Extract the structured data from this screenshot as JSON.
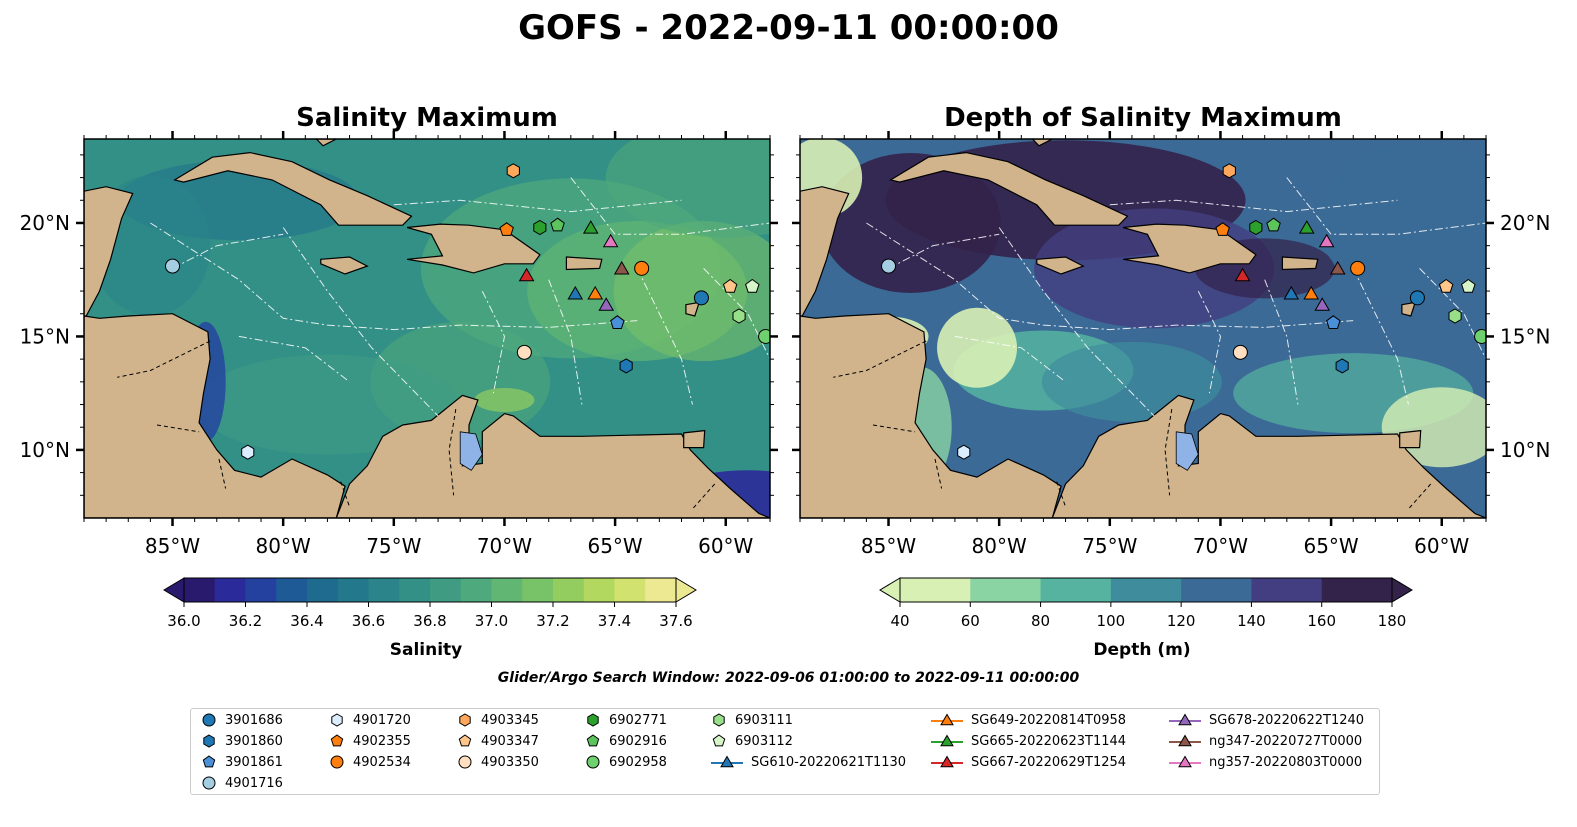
{
  "figure": {
    "title": "GOFS - 2022-09-11 00:00:00",
    "search_window": "Glider/Argo Search Window: 2022-09-06 01:00:00 to 2022-09-11 00:00:00"
  },
  "panels": [
    {
      "title": "Salinity Maximum",
      "colorbar": {
        "label": "Salinity",
        "ticks": [
          "36.0",
          "36.2",
          "36.4",
          "36.6",
          "36.8",
          "37.0",
          "37.2",
          "37.4",
          "37.6"
        ],
        "colors": [
          "#2a1a6e",
          "#2b2a9a",
          "#2441a0",
          "#1d5a96",
          "#1f6b8f",
          "#24788c",
          "#2a8489",
          "#339087",
          "#3f9c83",
          "#4ea97c",
          "#61b673",
          "#78c268",
          "#94cd5f",
          "#b2d85f",
          "#d1e36e",
          "#ede992"
        ]
      }
    },
    {
      "title": "Depth of Salinity Maximum",
      "colorbar": {
        "label": "Depth (m)",
        "ticks": [
          "40",
          "60",
          "80",
          "100",
          "120",
          "140",
          "160",
          "180"
        ],
        "colors": [
          "#d8f0b4",
          "#8ad3a2",
          "#55b3a0",
          "#3f8d9c",
          "#3b6a96",
          "#433e81",
          "#33224a"
        ]
      }
    }
  ],
  "map_axes": {
    "lon_labels": [
      "85°W",
      "80°W",
      "75°W",
      "70°W",
      "65°W",
      "60°W"
    ],
    "lat_labels": [
      "20°N",
      "15°N",
      "10°N"
    ],
    "lon_range": [
      -89,
      -58
    ],
    "lat_range": [
      7,
      23.7
    ],
    "land_color": "#d2b48c",
    "lake_color": "#8fb3e6"
  },
  "chart_data": {
    "type": "scatter",
    "title": "GOFS - 2022-09-11 00:00:00",
    "xlabel": "",
    "ylabel": "",
    "xlim": [
      -89,
      -58
    ],
    "ylim": [
      7,
      23.7
    ],
    "series": [
      {
        "name": "3901686",
        "marker": "circle",
        "color": "#1f77b4",
        "points": [
          [
            -61.1,
            16.7
          ]
        ]
      },
      {
        "name": "3901860",
        "marker": "hexagon",
        "color": "#1f77b4",
        "points": [
          [
            -64.5,
            13.7
          ]
        ]
      },
      {
        "name": "3901861",
        "marker": "pentagon",
        "color": "#4a90d9",
        "points": [
          [
            -64.9,
            15.6
          ]
        ]
      },
      {
        "name": "4901716",
        "marker": "circle",
        "color": "#a6cee3",
        "points": [
          [
            -85.0,
            18.1
          ]
        ]
      },
      {
        "name": "4901720",
        "marker": "hexagon",
        "color": "#dbeeff",
        "points": [
          [
            -81.6,
            9.9
          ]
        ]
      },
      {
        "name": "4902355",
        "marker": "pentagon",
        "color": "#ff7f0e",
        "points": [
          [
            -69.9,
            19.7
          ]
        ]
      },
      {
        "name": "4902534",
        "marker": "circle",
        "color": "#ff7f0e",
        "points": [
          [
            -63.8,
            18.0
          ]
        ]
      },
      {
        "name": "4903345",
        "marker": "hexagon",
        "color": "#ffa75a",
        "points": [
          [
            -69.6,
            22.3
          ]
        ]
      },
      {
        "name": "4903347",
        "marker": "pentagon",
        "color": "#ffc58a",
        "points": [
          [
            -59.8,
            17.2
          ]
        ]
      },
      {
        "name": "4903350",
        "marker": "circle",
        "color": "#ffdfc0",
        "points": [
          [
            -69.1,
            14.3
          ]
        ]
      },
      {
        "name": "6902771",
        "marker": "hexagon",
        "color": "#2ca02c",
        "points": [
          [
            -68.4,
            19.8
          ]
        ]
      },
      {
        "name": "6902916",
        "marker": "pentagon",
        "color": "#5cc45c",
        "points": [
          [
            -67.6,
            19.9
          ]
        ]
      },
      {
        "name": "6902958",
        "marker": "circle",
        "color": "#6fd06f",
        "points": [
          [
            -58.2,
            15.0
          ]
        ]
      },
      {
        "name": "6903111",
        "marker": "hexagon",
        "color": "#98df8a",
        "points": [
          [
            -59.4,
            15.9
          ]
        ]
      },
      {
        "name": "6903112",
        "marker": "pentagon",
        "color": "#d6f5c8",
        "points": [
          [
            -58.8,
            17.2
          ]
        ]
      },
      {
        "name": "SG610-20220621T1130",
        "marker": "triangle",
        "color": "#1f77b4",
        "track": true,
        "points": [
          [
            -66.8,
            16.9
          ]
        ]
      },
      {
        "name": "SG649-20220814T0958",
        "marker": "triangle",
        "color": "#ff7f0e",
        "track": true,
        "points": [
          [
            -65.9,
            16.9
          ]
        ]
      },
      {
        "name": "SG665-20220623T1144",
        "marker": "triangle",
        "color": "#2ca02c",
        "track": true,
        "points": [
          [
            -66.1,
            19.8
          ]
        ]
      },
      {
        "name": "SG667-20220629T1254",
        "marker": "triangle",
        "color": "#d62728",
        "track": true,
        "points": [
          [
            -69.0,
            17.7
          ]
        ]
      },
      {
        "name": "SG678-20220622T1240",
        "marker": "triangle",
        "color": "#9467bd",
        "track": true,
        "points": [
          [
            -65.4,
            16.4
          ]
        ]
      },
      {
        "name": "ng347-20220727T0000",
        "marker": "triangle",
        "color": "#8c564b",
        "track": true,
        "points": [
          [
            -64.7,
            18.0
          ]
        ]
      },
      {
        "name": "ng357-20220803T0000",
        "marker": "triangle",
        "color": "#e377c2",
        "track": true,
        "points": [
          [
            -65.2,
            19.2
          ]
        ]
      }
    ]
  },
  "legend_columns": [
    [
      "3901686",
      "3901860",
      "3901861",
      "4901716"
    ],
    [
      "4901720",
      "4902355",
      "4902534"
    ],
    [
      "4903345",
      "4903347",
      "4903350"
    ],
    [
      "6902771",
      "6902916",
      "6902958"
    ],
    [
      "6903111",
      "6903112",
      "SG610-20220621T1130"
    ],
    [
      "SG649-20220814T0958",
      "SG665-20220623T1144",
      "SG667-20220629T1254"
    ],
    [
      "SG678-20220622T1240",
      "ng347-20220727T0000",
      "ng357-20220803T0000"
    ]
  ]
}
